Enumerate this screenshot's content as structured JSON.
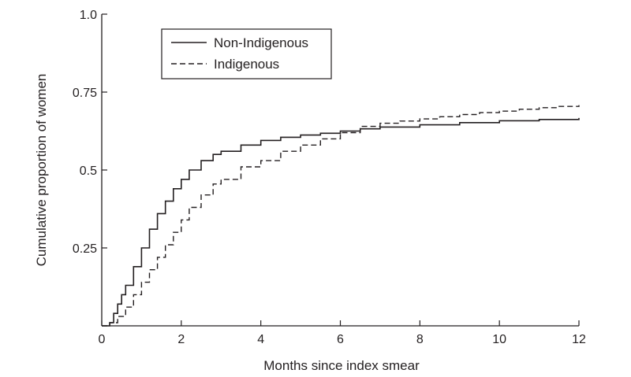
{
  "chart_data": {
    "type": "line",
    "title": "",
    "xlabel": "Months since index smear",
    "ylabel": "Cumulative proportion of women",
    "xlim": [
      0,
      12
    ],
    "ylim": [
      0,
      1.0
    ],
    "x_ticks": [
      0,
      2,
      4,
      6,
      8,
      10,
      12
    ],
    "x_tick_labels": [
      "0",
      "2",
      "4",
      "6",
      "8",
      "10",
      "12"
    ],
    "y_ticks": [
      0.25,
      0.5,
      0.75,
      1.0
    ],
    "y_tick_labels": [
      "0.25",
      "0.5",
      "0.75",
      "1.0"
    ],
    "grid": false,
    "legend_position": "top-left",
    "series": [
      {
        "name": "Non-Indigenous",
        "line_style": "solid",
        "color": "#231f20",
        "x": [
          0,
          0.2,
          0.3,
          0.4,
          0.5,
          0.6,
          0.8,
          1.0,
          1.2,
          1.4,
          1.6,
          1.8,
          2.0,
          2.2,
          2.5,
          2.8,
          3.0,
          3.5,
          4.0,
          4.5,
          5.0,
          5.5,
          6.0,
          6.5,
          7.0,
          8.0,
          9.0,
          10.0,
          11.0,
          12.0
        ],
        "y": [
          0,
          0.01,
          0.04,
          0.07,
          0.1,
          0.13,
          0.19,
          0.25,
          0.31,
          0.36,
          0.4,
          0.44,
          0.47,
          0.5,
          0.53,
          0.55,
          0.56,
          0.58,
          0.595,
          0.605,
          0.612,
          0.618,
          0.625,
          0.632,
          0.638,
          0.645,
          0.652,
          0.658,
          0.662,
          0.667
        ]
      },
      {
        "name": "Indigenous",
        "line_style": "dashed",
        "color": "#231f20",
        "x": [
          0,
          0.2,
          0.4,
          0.6,
          0.8,
          1.0,
          1.2,
          1.4,
          1.6,
          1.8,
          2.0,
          2.2,
          2.5,
          2.8,
          3.0,
          3.5,
          4.0,
          4.5,
          5.0,
          5.5,
          6.0,
          6.5,
          7.0,
          7.5,
          8.0,
          8.5,
          9.0,
          9.5,
          10.0,
          10.5,
          11.0,
          11.5,
          12.0
        ],
        "y": [
          0,
          0.01,
          0.03,
          0.06,
          0.1,
          0.14,
          0.18,
          0.22,
          0.26,
          0.3,
          0.34,
          0.38,
          0.42,
          0.455,
          0.47,
          0.51,
          0.53,
          0.56,
          0.58,
          0.6,
          0.62,
          0.64,
          0.65,
          0.657,
          0.664,
          0.671,
          0.678,
          0.684,
          0.689,
          0.695,
          0.7,
          0.704,
          0.708
        ]
      }
    ]
  }
}
